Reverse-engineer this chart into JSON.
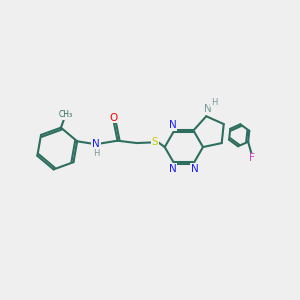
{
  "background_color": "#efefef",
  "bond_color": "#2d6e5e",
  "n_color": "#1a1aff",
  "o_color": "#ff0000",
  "s_color": "#cccc00",
  "f_color": "#cc44cc",
  "h_color": "#7a9a9a",
  "line_width": 1.5,
  "figsize": [
    3.0,
    3.0
  ],
  "dpi": 100,
  "xlim": [
    0,
    10
  ],
  "ylim": [
    0,
    10
  ]
}
